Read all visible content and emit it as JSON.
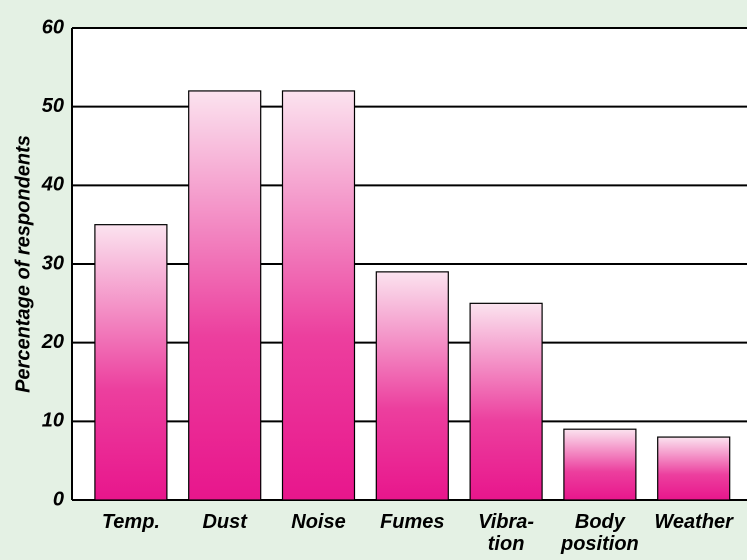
{
  "chart_data": {
    "type": "bar",
    "y_label": "Percentage of respondents",
    "categories": [
      "Temp.",
      "Dust",
      "Noise",
      "Fumes",
      "Vibra-\ntion",
      "Body\nposition",
      "Weather"
    ],
    "values": [
      35,
      52,
      52,
      29,
      25,
      9,
      8
    ],
    "color": "#e8168c",
    "ylim": [
      0,
      60
    ],
    "yticks": [
      0,
      10,
      20,
      30,
      40,
      50,
      60
    ],
    "grid": true
  }
}
